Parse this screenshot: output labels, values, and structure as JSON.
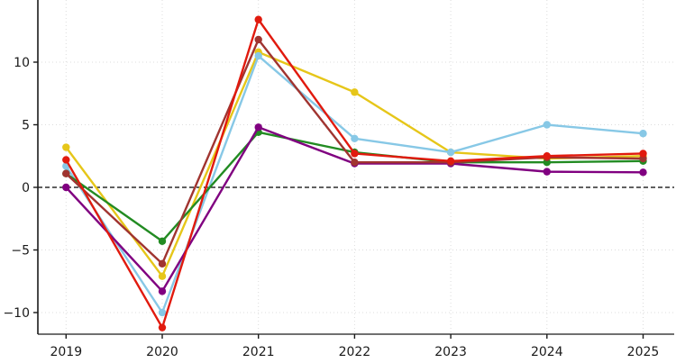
{
  "figure": {
    "background": "#ffffff",
    "axis_color": "#1a1a1a",
    "grid_color": "#dcdcdc",
    "zero_line_color": "#000000",
    "tick_label_color": "#1a1a1a"
  },
  "chart_data": {
    "type": "line",
    "title": "",
    "xlabel": "",
    "ylabel": "",
    "x": [
      2019,
      2020,
      2021,
      2022,
      2023,
      2024,
      2025
    ],
    "xtick_labels": [
      "2019",
      "2020",
      "2021",
      "2022",
      "2023",
      "2024",
      "2025"
    ],
    "yticks": [
      -10,
      -5,
      0,
      5,
      10
    ],
    "ytick_labels": [
      "−10",
      "−5",
      "0",
      "5",
      "10"
    ],
    "ylim": [
      -11.7,
      15.0
    ],
    "grid": true,
    "legend_position": "none",
    "zero_line": "dashed-black",
    "marker": "circle",
    "series": [
      {
        "name": "yellow",
        "color": "#e6c619",
        "values": [
          3.2,
          -7.1,
          10.8,
          7.6,
          2.8,
          2.3,
          2.5
        ]
      },
      {
        "name": "sky-blue",
        "color": "#87c8e6",
        "values": [
          1.7,
          -10.0,
          10.5,
          3.9,
          2.8,
          5.0,
          4.3
        ]
      },
      {
        "name": "green",
        "color": "#228b22",
        "values": [
          1.1,
          -4.3,
          4.4,
          2.8,
          2.0,
          2.0,
          2.1
        ]
      },
      {
        "name": "purple",
        "color": "#800080",
        "values": [
          0.0,
          -8.3,
          4.8,
          1.9,
          1.9,
          1.25,
          1.2
        ]
      },
      {
        "name": "dark-red",
        "color": "#a03430",
        "values": [
          1.1,
          -6.1,
          11.8,
          2.0,
          2.0,
          2.4,
          2.3
        ]
      },
      {
        "name": "red",
        "color": "#e11a0e",
        "values": [
          2.2,
          -11.2,
          13.4,
          2.7,
          2.1,
          2.5,
          2.7
        ]
      }
    ]
  }
}
